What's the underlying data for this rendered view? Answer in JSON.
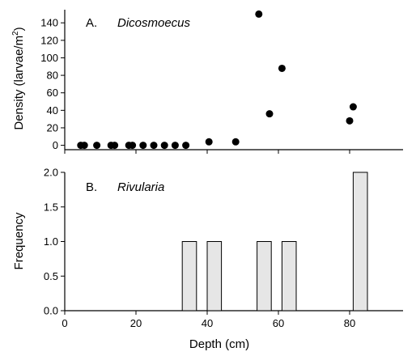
{
  "chart_data": [
    {
      "type": "scatter",
      "panel_letter": "A.",
      "panel_name": "Dicosmoecus",
      "xlabel": "Depth (cm)",
      "ylabel_main": "Density (larvae/m",
      "ylabel_sup": "2",
      "ylabel_close": ")",
      "xlim": [
        0,
        95
      ],
      "ylim": [
        -5,
        155
      ],
      "yticks": [
        "0",
        "20",
        "40",
        "60",
        "80",
        "100",
        "120",
        "140"
      ],
      "ytick_values": [
        0,
        20,
        40,
        60,
        80,
        100,
        120,
        140
      ],
      "xtick_values": [
        0,
        20,
        40,
        60,
        80
      ],
      "grid": false,
      "points": [
        {
          "x": 4.5,
          "y": 0
        },
        {
          "x": 5.5,
          "y": 0
        },
        {
          "x": 9,
          "y": 0
        },
        {
          "x": 13,
          "y": 0
        },
        {
          "x": 14,
          "y": 0
        },
        {
          "x": 18,
          "y": 0
        },
        {
          "x": 19,
          "y": 0
        },
        {
          "x": 22,
          "y": 0
        },
        {
          "x": 25,
          "y": 0
        },
        {
          "x": 28,
          "y": 0
        },
        {
          "x": 31,
          "y": 0
        },
        {
          "x": 34,
          "y": 0
        },
        {
          "x": 40.5,
          "y": 4
        },
        {
          "x": 48,
          "y": 4
        },
        {
          "x": 54.5,
          "y": 150
        },
        {
          "x": 57.5,
          "y": 36
        },
        {
          "x": 61,
          "y": 88
        },
        {
          "x": 80,
          "y": 28
        },
        {
          "x": 81,
          "y": 44
        }
      ]
    },
    {
      "type": "bar",
      "panel_letter": "B.",
      "panel_name": "Rivularia",
      "xlabel": "Depth (cm)",
      "ylabel": "Frequency",
      "xlim": [
        0,
        95
      ],
      "ylim": [
        0,
        2.0
      ],
      "yticks": [
        "0.0",
        "0.5",
        "1.0",
        "1.5",
        "2.0"
      ],
      "ytick_values": [
        0,
        0.5,
        1.0,
        1.5,
        2.0
      ],
      "xticks": [
        "0",
        "20",
        "40",
        "60",
        "80"
      ],
      "xtick_values": [
        0,
        20,
        40,
        60,
        80
      ],
      "grid": false,
      "bars": [
        {
          "x0": 33,
          "x1": 37,
          "value": 1
        },
        {
          "x0": 40,
          "x1": 44,
          "value": 1
        },
        {
          "x0": 54,
          "x1": 58,
          "value": 1
        },
        {
          "x0": 61,
          "x1": 65,
          "value": 1
        },
        {
          "x0": 81,
          "x1": 85,
          "value": 2
        }
      ],
      "bar_color": "#e6e6e6"
    }
  ]
}
